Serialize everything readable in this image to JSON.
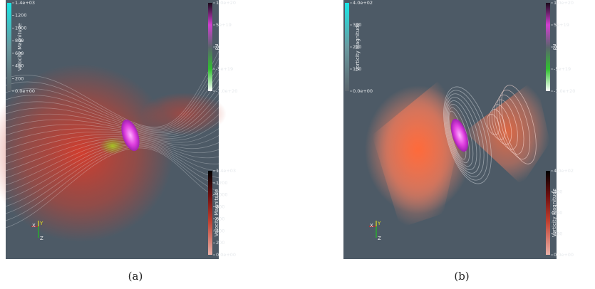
{
  "panels": [
    {
      "caption": "(a)",
      "colorbars": [
        {
          "title": "Velocity Magnitude",
          "ticks": [
            "1.4e+03",
            "1200",
            "1000",
            "800",
            "600",
            "400",
            "200",
            "0.0e+00"
          ]
        },
        {
          "title": "ρu",
          "ticks": [
            "1.0e+20",
            "5e+19",
            "0",
            "-5e+19",
            "-1.0e+20"
          ]
        },
        {
          "title": "Velocity Magnitude",
          "ticks": [
            "1.4e+03",
            "1200",
            "1000",
            "800",
            "600",
            "400",
            "200",
            "0.0e+00"
          ]
        }
      ],
      "axes": [
        "X",
        "Y",
        "Z"
      ]
    },
    {
      "caption": "(b)",
      "colorbars": [
        {
          "title": "Vorticity Magnitude",
          "ticks": [
            "4.0e+02",
            "300",
            "200",
            "100",
            "0.0e+00"
          ]
        },
        {
          "title": "ρu",
          "ticks": [
            "1.0e+20",
            "5e+19",
            "0",
            "-5e+19",
            "-1.0e+20"
          ]
        },
        {
          "title": "Vorticity Magnitude",
          "ticks": [
            "4.0e+02",
            "300",
            "200",
            "100",
            "0.0e+00"
          ]
        }
      ],
      "axes": [
        "X",
        "Y",
        "Z"
      ]
    }
  ]
}
